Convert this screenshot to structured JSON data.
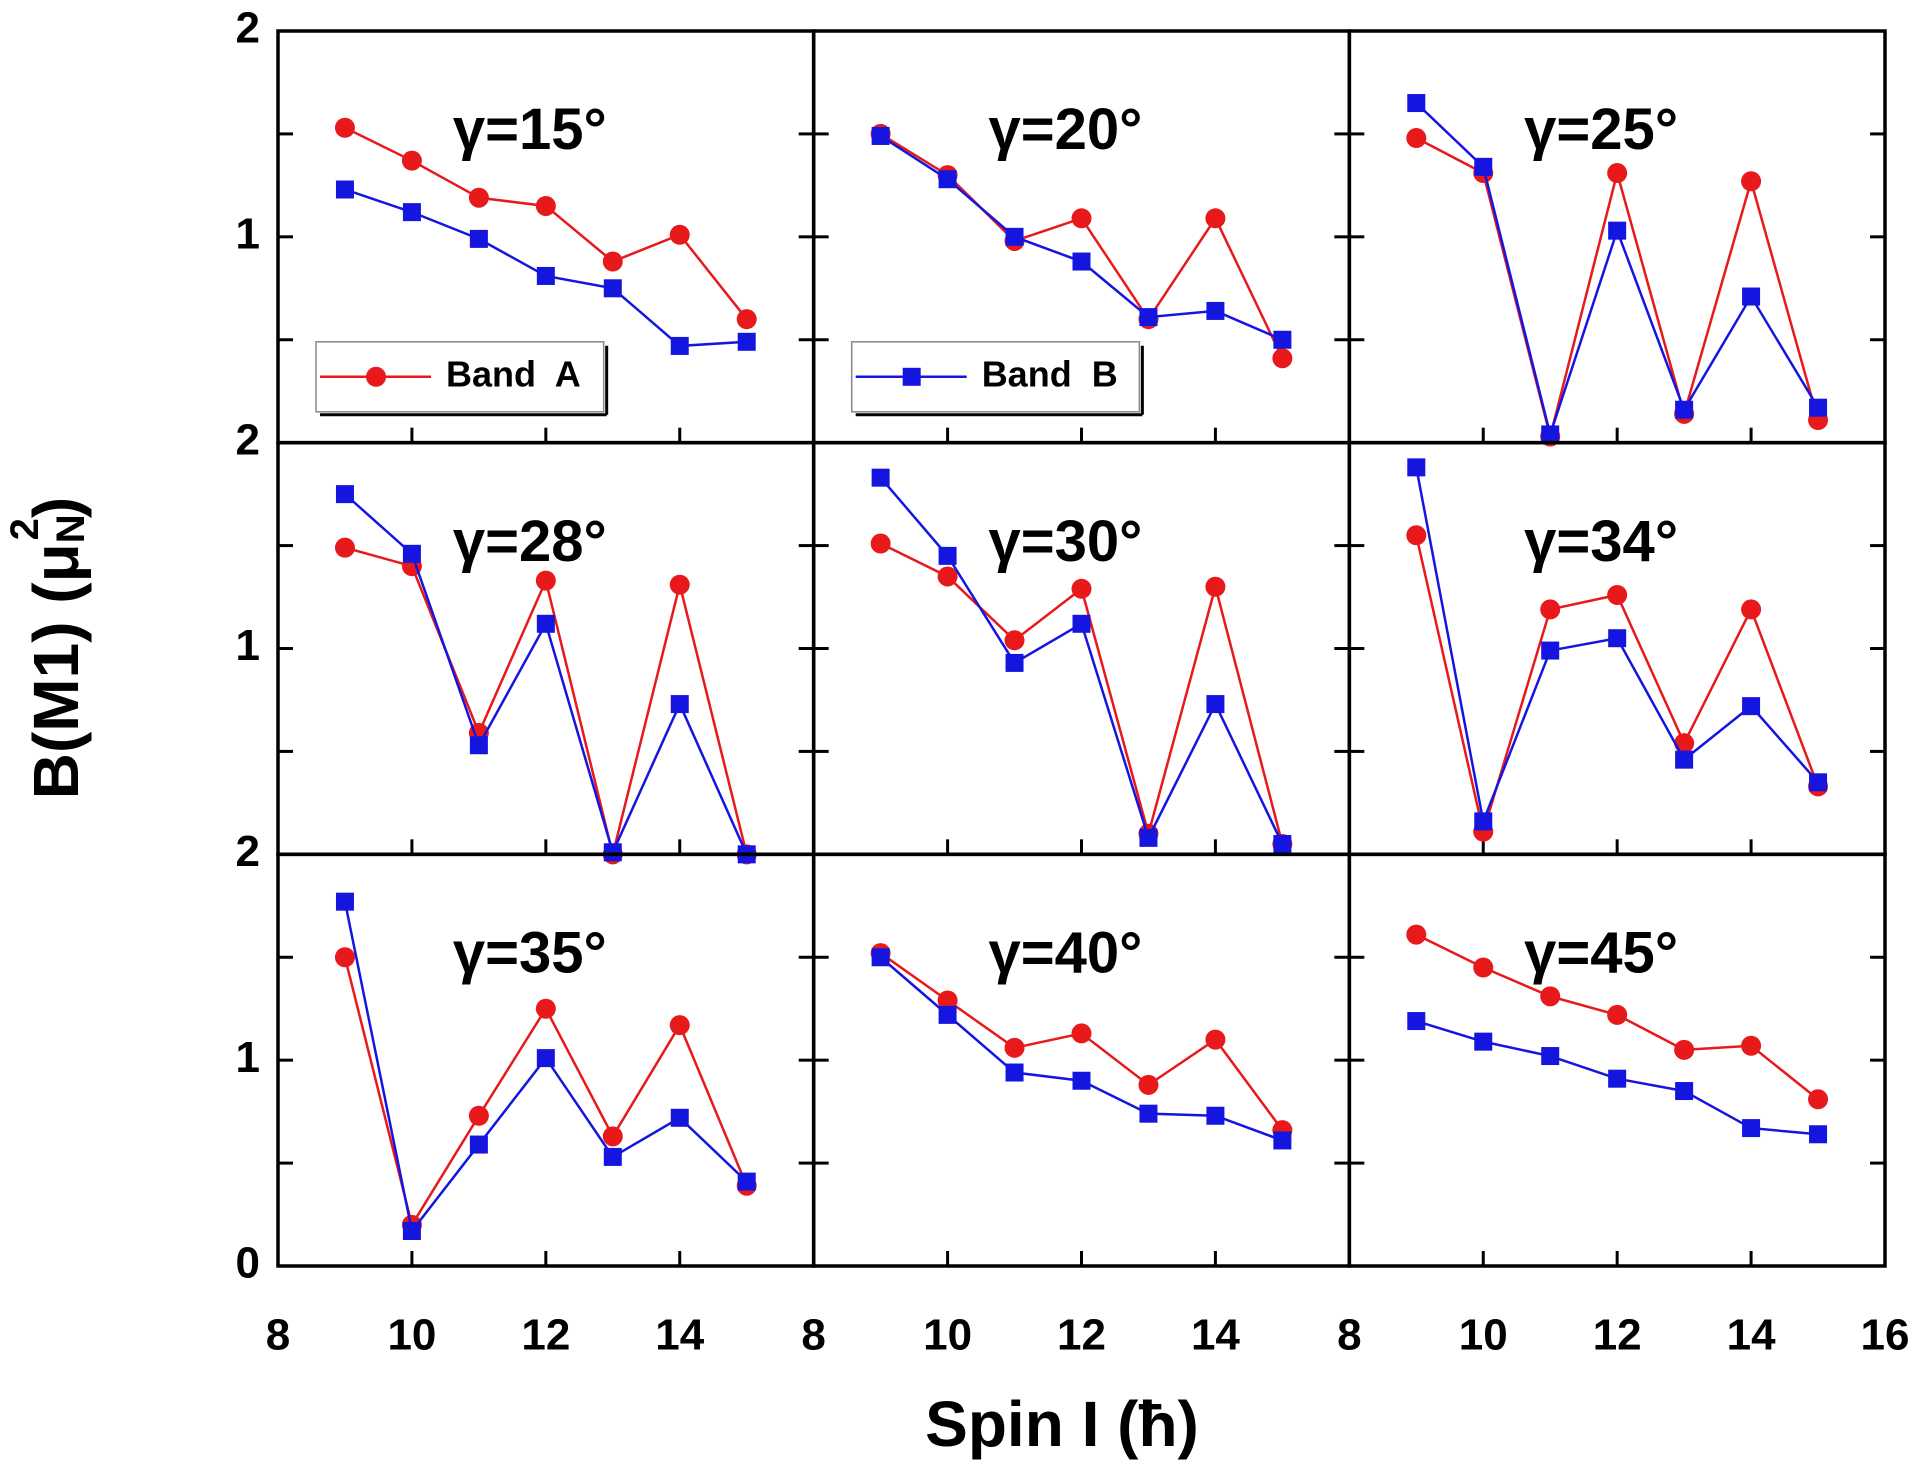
{
  "x_label": "Spin I (ħ)",
  "y_label": {
    "text": "B(M1) (μ",
    "sub": "N",
    "sup": "2",
    "end": ")"
  },
  "chart_data": [
    {
      "type": "line",
      "title": "γ=15°",
      "x": [
        9,
        10,
        11,
        12,
        13,
        14,
        15
      ],
      "xlim": [
        8,
        16
      ],
      "ylim": [
        0,
        2
      ],
      "yticks": [
        1,
        2
      ],
      "ytick_marks": [
        0.5,
        1.5
      ],
      "xtick_marks": [
        10,
        12,
        14
      ],
      "series": [
        {
          "name": "Band  A",
          "color": "#e8191b",
          "marker": "circle",
          "values": [
            1.53,
            1.37,
            1.19,
            1.15,
            0.88,
            1.01,
            0.6
          ]
        },
        {
          "color": "#1515e0",
          "marker": "square",
          "values": [
            1.23,
            1.12,
            0.99,
            0.81,
            0.75,
            0.47,
            0.49
          ]
        }
      ]
    },
    {
      "type": "line",
      "title": "γ=20°",
      "x": [
        9,
        10,
        11,
        12,
        13,
        14,
        15
      ],
      "xlim": [
        8,
        16
      ],
      "ylim": [
        0,
        2
      ],
      "ytick_marks": [
        0.5,
        1,
        1.5
      ],
      "xtick_marks": [
        10,
        12,
        14
      ],
      "series": [
        {
          "color": "#e8191b",
          "marker": "circle",
          "values": [
            1.5,
            1.3,
            0.98,
            1.09,
            0.6,
            1.09,
            0.41
          ]
        },
        {
          "name": "Band  B",
          "color": "#1515e0",
          "marker": "square",
          "values": [
            1.49,
            1.28,
            1.0,
            0.88,
            0.61,
            0.64,
            0.5
          ]
        }
      ]
    },
    {
      "type": "line",
      "title": "γ=25°",
      "x": [
        9,
        10,
        11,
        12,
        13,
        14,
        15
      ],
      "xlim": [
        8,
        16
      ],
      "ylim": [
        0,
        2
      ],
      "ytick_marks": [
        0.5,
        1,
        1.5
      ],
      "xtick_marks": [
        10,
        12,
        14
      ],
      "series": [
        {
          "color": "#e8191b",
          "marker": "circle",
          "values": [
            1.48,
            1.31,
            0.03,
            1.31,
            0.14,
            1.27,
            0.11
          ]
        },
        {
          "color": "#1515e0",
          "marker": "square",
          "values": [
            1.65,
            1.34,
            0.04,
            1.03,
            0.16,
            0.71,
            0.17
          ]
        }
      ]
    },
    {
      "type": "line",
      "title": "γ=28°",
      "x": [
        9,
        10,
        11,
        12,
        13,
        14,
        15
      ],
      "xlim": [
        8,
        16
      ],
      "ylim": [
        0,
        2
      ],
      "yticks": [
        1,
        2
      ],
      "ytick_marks": [
        0.5,
        1.5
      ],
      "xtick_marks": [
        10,
        12,
        14
      ],
      "series": [
        {
          "color": "#e8191b",
          "marker": "circle",
          "values": [
            1.49,
            1.4,
            0.59,
            1.33,
            0.0,
            1.31,
            0.0
          ]
        },
        {
          "color": "#1515e0",
          "marker": "square",
          "values": [
            1.75,
            1.46,
            0.53,
            1.12,
            0.01,
            0.73,
            0.0
          ]
        }
      ]
    },
    {
      "type": "line",
      "title": "γ=30°",
      "x": [
        9,
        10,
        11,
        12,
        13,
        14,
        15
      ],
      "xlim": [
        8,
        16
      ],
      "ylim": [
        0,
        2
      ],
      "ytick_marks": [
        0.5,
        1,
        1.5
      ],
      "xtick_marks": [
        10,
        12,
        14
      ],
      "series": [
        {
          "color": "#e8191b",
          "marker": "circle",
          "values": [
            1.51,
            1.35,
            1.04,
            1.29,
            0.1,
            1.3,
            0.05
          ]
        },
        {
          "color": "#1515e0",
          "marker": "square",
          "values": [
            1.83,
            1.45,
            0.93,
            1.12,
            0.08,
            0.73,
            0.05
          ]
        }
      ]
    },
    {
      "type": "line",
      "title": "γ=34°",
      "x": [
        9,
        10,
        11,
        12,
        13,
        14,
        15
      ],
      "xlim": [
        8,
        16
      ],
      "ylim": [
        0,
        2
      ],
      "ytick_marks": [
        0.5,
        1,
        1.5
      ],
      "xtick_marks": [
        10,
        12,
        14
      ],
      "series": [
        {
          "color": "#e8191b",
          "marker": "circle",
          "values": [
            1.55,
            0.11,
            1.19,
            1.26,
            0.54,
            1.19,
            0.33
          ]
        },
        {
          "color": "#1515e0",
          "marker": "square",
          "values": [
            1.88,
            0.16,
            0.99,
            1.05,
            0.46,
            0.72,
            0.35
          ]
        }
      ]
    },
    {
      "type": "line",
      "title": "γ=35°",
      "x": [
        9,
        10,
        11,
        12,
        13,
        14,
        15
      ],
      "xlim": [
        8,
        16
      ],
      "ylim": [
        0,
        2
      ],
      "yticks": [
        0,
        1,
        2
      ],
      "ytick_marks": [
        0.5,
        1.5
      ],
      "xticks": [
        8,
        10,
        12,
        14
      ],
      "series": [
        {
          "color": "#e8191b",
          "marker": "circle",
          "values": [
            1.5,
            0.2,
            0.73,
            1.25,
            0.63,
            1.17,
            0.39
          ]
        },
        {
          "color": "#1515e0",
          "marker": "square",
          "values": [
            1.77,
            0.17,
            0.59,
            1.01,
            0.53,
            0.72,
            0.41
          ]
        }
      ]
    },
    {
      "type": "line",
      "title": "γ=40°",
      "x": [
        9,
        10,
        11,
        12,
        13,
        14,
        15
      ],
      "xlim": [
        8,
        16
      ],
      "ylim": [
        0,
        2
      ],
      "ytick_marks": [
        0.5,
        1,
        1.5
      ],
      "xticks": [
        8,
        10,
        12,
        14
      ],
      "series": [
        {
          "color": "#e8191b",
          "marker": "circle",
          "values": [
            1.52,
            1.29,
            1.06,
            1.13,
            0.88,
            1.1,
            0.66
          ]
        },
        {
          "color": "#1515e0",
          "marker": "square",
          "values": [
            1.5,
            1.22,
            0.94,
            0.9,
            0.74,
            0.73,
            0.61
          ]
        }
      ]
    },
    {
      "type": "line",
      "title": "γ=45°",
      "x": [
        9,
        10,
        11,
        12,
        13,
        14,
        15
      ],
      "xlim": [
        8,
        16
      ],
      "ylim": [
        0,
        2
      ],
      "ytick_marks": [
        0.5,
        1,
        1.5
      ],
      "xticks": [
        8,
        10,
        12,
        14,
        16
      ],
      "series": [
        {
          "color": "#e8191b",
          "marker": "circle",
          "values": [
            1.61,
            1.45,
            1.31,
            1.22,
            1.05,
            1.07,
            0.81
          ]
        },
        {
          "color": "#1515e0",
          "marker": "square",
          "values": [
            1.19,
            1.09,
            1.02,
            0.91,
            0.85,
            0.67,
            0.64
          ]
        }
      ]
    }
  ]
}
